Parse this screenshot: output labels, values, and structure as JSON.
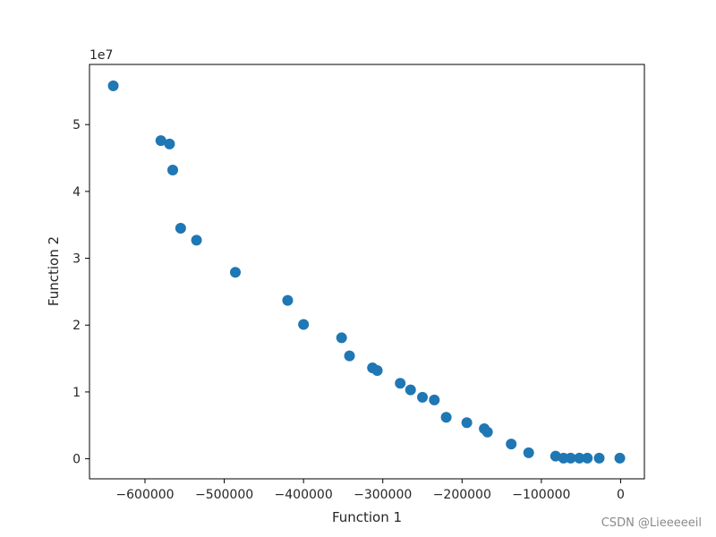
{
  "chart_data": {
    "type": "scatter",
    "title": "",
    "xlabel": "Function 1",
    "ylabel": "Function 2",
    "y_offset_label": "1e7",
    "xlim": [
      -670000,
      30000
    ],
    "ylim": [
      -3000000,
      59000000
    ],
    "x_ticks": [
      -600000,
      -500000,
      -400000,
      -300000,
      -200000,
      -100000,
      0
    ],
    "x_tick_labels": [
      "−600000",
      "−500000",
      "−400000",
      "−300000",
      "−200000",
      "−100000",
      "0"
    ],
    "y_ticks": [
      0,
      10000000,
      20000000,
      30000000,
      40000000,
      50000000
    ],
    "y_tick_labels": [
      "0",
      "1",
      "2",
      "3",
      "4",
      "5"
    ],
    "grid": false,
    "marker_color": "#1f77b4",
    "points": [
      {
        "x": -640000,
        "y": 55800000
      },
      {
        "x": -580000,
        "y": 47600000
      },
      {
        "x": -569000,
        "y": 47100000
      },
      {
        "x": -565000,
        "y": 43200000
      },
      {
        "x": -555000,
        "y": 34500000
      },
      {
        "x": -535000,
        "y": 32700000
      },
      {
        "x": -486000,
        "y": 27900000
      },
      {
        "x": -420000,
        "y": 23700000
      },
      {
        "x": -400000,
        "y": 20100000
      },
      {
        "x": -352000,
        "y": 18100000
      },
      {
        "x": -342000,
        "y": 15400000
      },
      {
        "x": -313000,
        "y": 13600000
      },
      {
        "x": -307000,
        "y": 13200000
      },
      {
        "x": -278000,
        "y": 11300000
      },
      {
        "x": -265000,
        "y": 10300000
      },
      {
        "x": -250000,
        "y": 9200000
      },
      {
        "x": -235000,
        "y": 8800000
      },
      {
        "x": -220000,
        "y": 6200000
      },
      {
        "x": -194000,
        "y": 5400000
      },
      {
        "x": -172000,
        "y": 4500000
      },
      {
        "x": -168000,
        "y": 4000000
      },
      {
        "x": -138000,
        "y": 2200000
      },
      {
        "x": -116000,
        "y": 900000
      },
      {
        "x": -82000,
        "y": 400000
      },
      {
        "x": -72000,
        "y": 100000
      },
      {
        "x": -63000,
        "y": 100000
      },
      {
        "x": -52000,
        "y": 100000
      },
      {
        "x": -42000,
        "y": 100000
      },
      {
        "x": -27000,
        "y": 100000
      },
      {
        "x": -1000,
        "y": 100000
      }
    ]
  },
  "watermark": "CSDN @Lieeeeeil"
}
